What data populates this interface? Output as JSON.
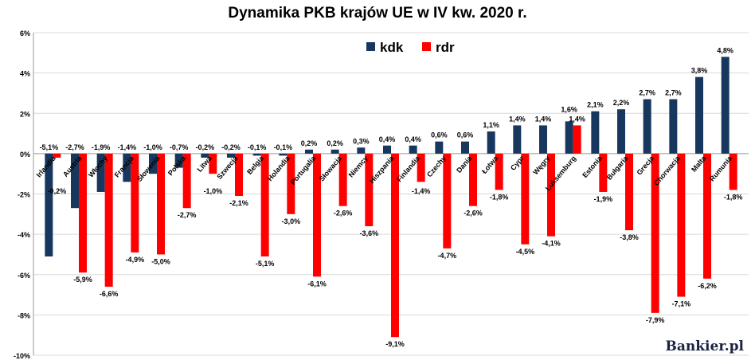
{
  "chart_data": {
    "type": "bar",
    "title": "Dynamika PKB krajów UE w IV kw. 2020 r.",
    "categories": [
      "Irlandia",
      "Austria",
      "Włochy",
      "Francja",
      "Słowenia",
      "Polska",
      "Litwa",
      "Szwecja",
      "Belgia",
      "Holandia",
      "Portugalia",
      "Słowacja",
      "Niemcy",
      "Hiszpania",
      "Finlandia",
      "Czechy",
      "Dania",
      "Łotwa",
      "Cypr",
      "Węgry",
      "Luksemburg",
      "Estonia",
      "Bułgaria",
      "Grecja",
      "Chorwacja",
      "Malta",
      "Rumunia"
    ],
    "series": [
      {
        "name": "kdk",
        "color": "#17375e",
        "values": [
          -5.1,
          -2.7,
          -1.9,
          -1.4,
          -1.0,
          -0.7,
          -0.2,
          -0.2,
          -0.1,
          -0.1,
          0.2,
          0.2,
          0.3,
          0.4,
          0.4,
          0.6,
          0.6,
          1.1,
          1.4,
          1.4,
          1.6,
          2.1,
          2.2,
          2.7,
          2.7,
          3.8,
          4.8
        ]
      },
      {
        "name": "rdr",
        "color": "#ff0000",
        "values": [
          -0.2,
          -5.9,
          -6.6,
          -4.9,
          -5.0,
          -2.7,
          -1.0,
          -2.1,
          -5.1,
          -3.0,
          -6.1,
          -2.6,
          -3.6,
          -9.1,
          -1.4,
          -4.7,
          -2.6,
          -1.8,
          -4.5,
          -4.1,
          1.4,
          -1.9,
          -3.8,
          -7.9,
          -7.1,
          -6.2,
          -1.8
        ]
      }
    ],
    "ylim": [
      -10,
      6
    ],
    "yticks": [
      "6%",
      "4%",
      "2%",
      "0%",
      "-2%",
      "-4%",
      "-6%",
      "-8%",
      "-10%"
    ],
    "grid": true,
    "legend": "top-center"
  },
  "logo": "Bankier.pl"
}
